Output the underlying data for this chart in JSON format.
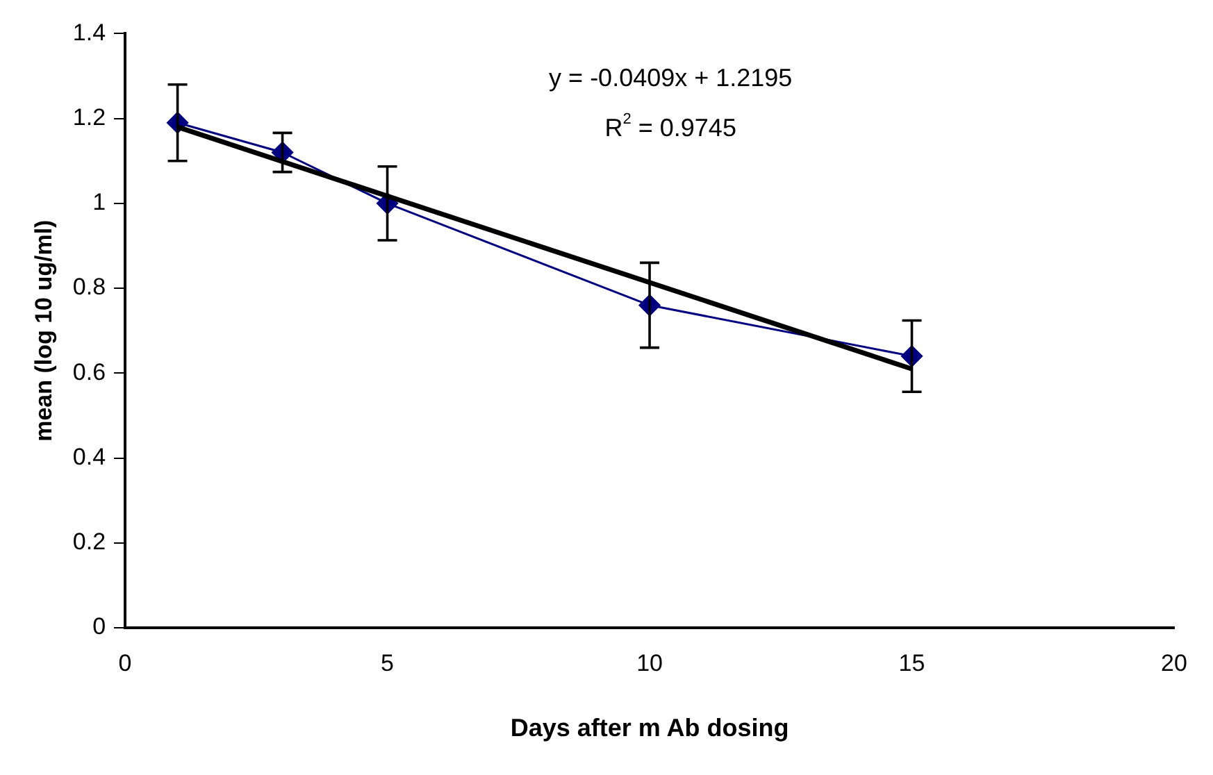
{
  "chart_data": {
    "type": "line",
    "xlabel": "Days after m Ab dosing",
    "ylabel": "mean (log 10 ug/ml)",
    "xlim": [
      0,
      20
    ],
    "xticks": [
      0,
      5,
      10,
      15,
      20
    ],
    "ylim": [
      0,
      1.4
    ],
    "yticks": [
      0,
      0.2,
      0.4,
      0.6,
      0.8,
      1,
      1.2,
      1.4
    ],
    "grid": false,
    "legend": false,
    "marker": "diamond",
    "line_style": "solid",
    "annotations": [
      "y = -0.0409x + 1.2195",
      "R$^{2}$ = 0.9745"
    ],
    "series": [
      {
        "color": "#000080",
        "x": [
          1,
          3,
          5,
          10,
          15
        ],
        "values": [
          1.19,
          1.12,
          1.0,
          0.76,
          0.64
        ],
        "errors": [
          0.09,
          0.046,
          0.087,
          0.1,
          0.084
        ]
      },
      {
        "color": "#000000",
        "marker": "none",
        "x": [
          1,
          15
        ],
        "values": [
          1.18,
          0.61
        ]
      }
    ]
  }
}
